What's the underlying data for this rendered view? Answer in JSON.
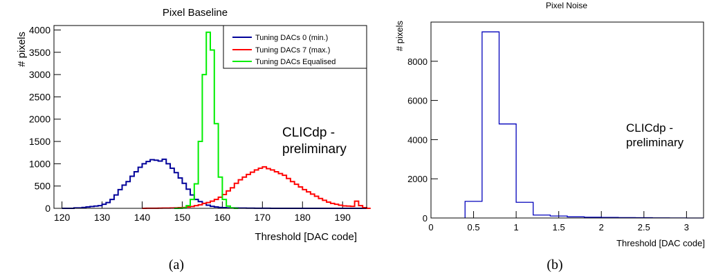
{
  "chart_data": [
    {
      "type": "line",
      "panel_label": "(a)",
      "title": "Pixel Baseline",
      "xlabel": "Threshold [DAC code]",
      "ylabel": "# pixels",
      "xlim": [
        118,
        196
      ],
      "ylim": [
        0,
        4100
      ],
      "xticks": [
        120,
        130,
        140,
        150,
        160,
        170,
        180,
        190
      ],
      "yticks": [
        0,
        500,
        1000,
        1500,
        2000,
        2500,
        3000,
        3500,
        4000
      ],
      "bin_width": 1,
      "legend_position": "top-right",
      "annotation": [
        "CLICdp -",
        "preliminary"
      ],
      "series": [
        {
          "name": "Tuning DACs 0 (min.)",
          "color": "#000099",
          "x_start": 120,
          "values": [
            0,
            0,
            0,
            10,
            10,
            20,
            30,
            40,
            50,
            60,
            90,
            130,
            200,
            300,
            420,
            520,
            600,
            720,
            820,
            920,
            1000,
            1050,
            1090,
            1080,
            1060,
            1100,
            1000,
            900,
            800,
            680,
            560,
            430,
            300,
            200,
            150,
            110,
            70,
            45,
            30,
            20,
            15,
            10,
            10,
            8,
            6,
            5,
            4,
            3,
            2,
            2,
            1,
            1,
            0,
            0,
            0,
            0,
            0,
            0,
            0,
            0,
            0,
            0,
            0,
            0,
            0,
            0,
            0,
            0,
            0,
            0,
            0,
            0,
            0,
            0,
            0,
            0
          ]
        },
        {
          "name": "Tuning DACs 7 (max.)",
          "color": "#ff0000",
          "x_start": 140,
          "values": [
            0,
            1,
            1,
            2,
            3,
            5,
            6,
            8,
            10,
            15,
            20,
            30,
            40,
            60,
            80,
            110,
            130,
            160,
            200,
            250,
            310,
            390,
            460,
            560,
            640,
            700,
            760,
            810,
            860,
            900,
            930,
            890,
            860,
            820,
            780,
            740,
            670,
            600,
            540,
            480,
            420,
            370,
            320,
            270,
            220,
            180,
            140,
            110,
            90,
            70,
            55,
            50,
            45,
            160,
            60,
            15,
            0
          ]
        },
        {
          "name": "Tuning DACs Equalised",
          "color": "#00ee00",
          "x_start": 148,
          "values": [
            0,
            2,
            10,
            60,
            200,
            550,
            1500,
            3000,
            3950,
            3550,
            1900,
            700,
            200,
            50,
            10,
            0
          ]
        }
      ]
    },
    {
      "type": "bar",
      "panel_label": "(b)",
      "title": "Pixel Noise",
      "xlabel": "Threshold [DAC code]",
      "ylabel": "# pixels",
      "xlim": [
        0,
        3.2
      ],
      "ylim": [
        0,
        10000
      ],
      "xticks": [
        0,
        0.5,
        1,
        1.5,
        2,
        2.5,
        3
      ],
      "xtick_labels": [
        "0",
        "0.5",
        "1",
        "1.5",
        "2",
        "2.5",
        "3"
      ],
      "yticks": [
        0,
        2000,
        4000,
        6000,
        8000
      ],
      "bin_width": 0.2,
      "annotation": [
        "CLICdp -",
        "preliminary"
      ],
      "series": [
        {
          "name": "",
          "color": "#0000bb",
          "x_start": 0.4,
          "values": [
            850,
            9500,
            4800,
            800,
            150,
            100,
            60,
            40,
            30,
            20,
            15,
            10,
            5,
            0
          ]
        }
      ]
    }
  ]
}
